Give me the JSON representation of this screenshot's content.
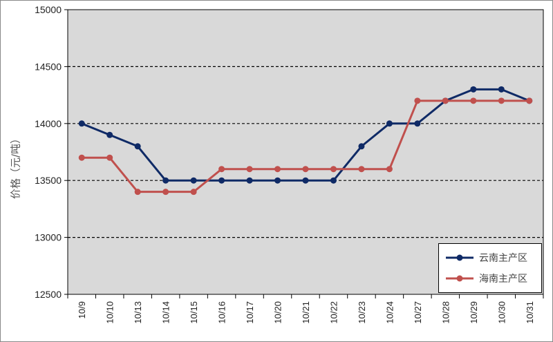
{
  "chart_data": {
    "type": "line",
    "categories": [
      "10/9",
      "10/10",
      "10/13",
      "10/14",
      "10/15",
      "10/16",
      "10/17",
      "10/20",
      "10/21",
      "10/22",
      "10/23",
      "10/24",
      "10/27",
      "10/28",
      "10/29",
      "10/30",
      "10/31"
    ],
    "series": [
      {
        "name": "云南主产区",
        "color": "#0f2a66",
        "values": [
          14000,
          13900,
          13800,
          13500,
          13500,
          13500,
          13500,
          13500,
          13500,
          13500,
          13800,
          14000,
          14000,
          14200,
          14300,
          14300,
          14200
        ]
      },
      {
        "name": "海南主产区",
        "color": "#c0504d",
        "values": [
          13700,
          13700,
          13400,
          13400,
          13400,
          13600,
          13600,
          13600,
          13600,
          13600,
          13600,
          13600,
          14200,
          14200,
          14200,
          14200,
          14200
        ]
      }
    ],
    "ylabel": "价格（元/吨）",
    "xlabel": "",
    "ylim": [
      12500,
      15000
    ],
    "yticks": [
      12500,
      13000,
      13500,
      14000,
      14500,
      15000
    ],
    "grid": "horizontal dashed",
    "legend": "bottom-right",
    "plot_background": "#d9d9d9"
  }
}
